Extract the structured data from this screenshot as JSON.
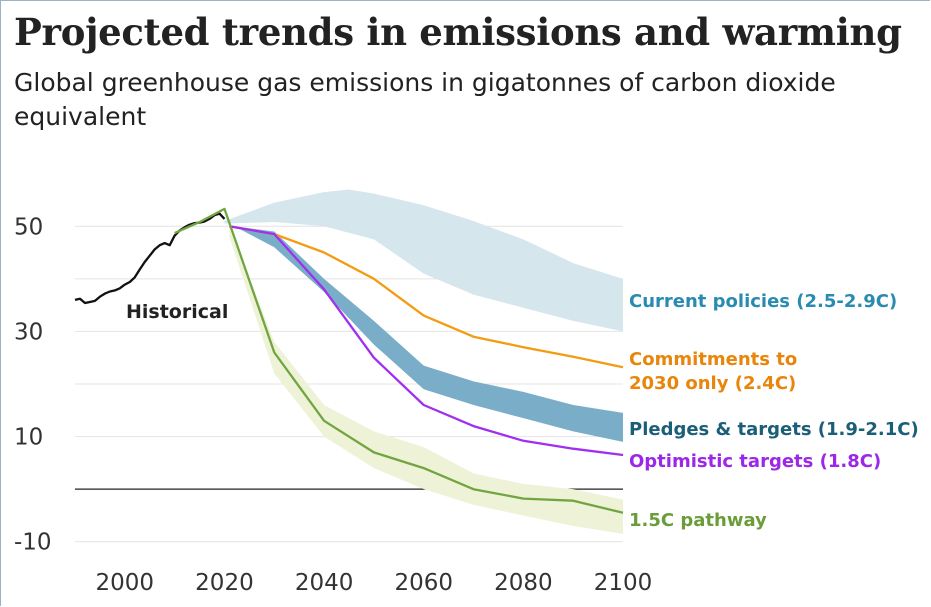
{
  "header": {
    "title": "Projected trends in emissions and warming",
    "subtitle": "Global greenhouse gas emissions in gigatonnes of carbon dioxide equivalent"
  },
  "chart_data": {
    "type": "line",
    "title": "Projected trends in emissions and warming",
    "subtitle": "Global greenhouse gas emissions in gigatonnes of carbon dioxide equivalent",
    "xlabel": "",
    "ylabel": "",
    "xlim": [
      1990,
      2100
    ],
    "ylim": [
      -12,
      60
    ],
    "x_ticks": [
      2000,
      2020,
      2040,
      2060,
      2080,
      2100
    ],
    "y_ticks": [
      50,
      30,
      10,
      -10
    ],
    "grid": "horizontal",
    "series": [
      {
        "name": "Historical",
        "color": "#111111",
        "points": [
          [
            1990,
            36
          ],
          [
            1991,
            36.2
          ],
          [
            1992,
            35.4
          ],
          [
            1993,
            35.6
          ],
          [
            1994,
            35.8
          ],
          [
            1995,
            36.6
          ],
          [
            1996,
            37.2
          ],
          [
            1997,
            37.6
          ],
          [
            1998,
            37.8
          ],
          [
            1999,
            38.2
          ],
          [
            2000,
            38.9
          ],
          [
            2001,
            39.4
          ],
          [
            2002,
            40.3
          ],
          [
            2003,
            41.8
          ],
          [
            2004,
            43.2
          ],
          [
            2005,
            44.4
          ],
          [
            2006,
            45.6
          ],
          [
            2007,
            46.4
          ],
          [
            2008,
            46.8
          ],
          [
            2009,
            46.4
          ],
          [
            2010,
            48.2
          ],
          [
            2011,
            49.2
          ],
          [
            2012,
            49.8
          ],
          [
            2013,
            50.3
          ],
          [
            2014,
            50.6
          ],
          [
            2015,
            50.7
          ],
          [
            2016,
            50.9
          ],
          [
            2017,
            51.4
          ],
          [
            2018,
            52.1
          ],
          [
            2019,
            52.4
          ],
          [
            2020,
            51.4
          ]
        ]
      },
      {
        "name": "Current policies (2.5-2.9C)",
        "color": "#2a8bb0",
        "band_color": "#d6e6ed",
        "upper": [
          [
            2020,
            51
          ],
          [
            2030,
            54.5
          ],
          [
            2040,
            56.5
          ],
          [
            2045,
            57
          ],
          [
            2050,
            56.2
          ],
          [
            2060,
            54
          ],
          [
            2070,
            51
          ],
          [
            2080,
            47.5
          ],
          [
            2090,
            43
          ],
          [
            2100,
            40
          ]
        ],
        "lower": [
          [
            2020,
            50.5
          ],
          [
            2030,
            50.8
          ],
          [
            2040,
            50
          ],
          [
            2050,
            47.5
          ],
          [
            2060,
            41
          ],
          [
            2070,
            37
          ],
          [
            2080,
            34.5
          ],
          [
            2090,
            32
          ],
          [
            2100,
            30
          ]
        ]
      },
      {
        "name": "Commitments to 2030 only (2.4C)",
        "color": "#f39c12",
        "points": [
          [
            2021,
            50
          ],
          [
            2030,
            48.5
          ],
          [
            2040,
            45
          ],
          [
            2050,
            40
          ],
          [
            2055,
            36.5
          ],
          [
            2060,
            33
          ],
          [
            2070,
            29
          ],
          [
            2080,
            27
          ],
          [
            2090,
            25.2
          ],
          [
            2100,
            23.2
          ]
        ]
      },
      {
        "name": "Pledges & targets (1.9-2.1C)",
        "color": "#1a5e78",
        "band_color": "#7aaec8",
        "upper": [
          [
            2022,
            50
          ],
          [
            2030,
            49
          ],
          [
            2040,
            40
          ],
          [
            2050,
            32
          ],
          [
            2060,
            23.5
          ],
          [
            2070,
            20.5
          ],
          [
            2080,
            18.5
          ],
          [
            2090,
            16
          ],
          [
            2100,
            14.5
          ]
        ],
        "lower": [
          [
            2022,
            50
          ],
          [
            2030,
            46
          ],
          [
            2040,
            37.5
          ],
          [
            2050,
            27.5
          ],
          [
            2060,
            19
          ],
          [
            2070,
            16
          ],
          [
            2080,
            13.5
          ],
          [
            2090,
            11
          ],
          [
            2100,
            9
          ]
        ]
      },
      {
        "name": "Optimistic targets (1.8C)",
        "color": "#a02ff0",
        "points": [
          [
            2021,
            50
          ],
          [
            2030,
            48.5
          ],
          [
            2040,
            38
          ],
          [
            2050,
            25
          ],
          [
            2060,
            16
          ],
          [
            2070,
            12
          ],
          [
            2080,
            9.2
          ],
          [
            2090,
            7.7
          ],
          [
            2100,
            6.5
          ]
        ]
      },
      {
        "name": "1.5C pathway",
        "color": "#72a542",
        "band_color": "#eef3d8",
        "points": [
          [
            2010,
            48.7
          ],
          [
            2015,
            50.8
          ],
          [
            2020,
            53.3
          ],
          [
            2030,
            26
          ],
          [
            2040,
            13
          ],
          [
            2050,
            7
          ],
          [
            2060,
            4
          ],
          [
            2070,
            0
          ],
          [
            2080,
            -1.8
          ],
          [
            2090,
            -2.2
          ],
          [
            2100,
            -4.5
          ]
        ],
        "upper": [
          [
            2021,
            50
          ],
          [
            2030,
            28
          ],
          [
            2040,
            16
          ],
          [
            2050,
            11
          ],
          [
            2060,
            8
          ],
          [
            2070,
            3
          ],
          [
            2080,
            1
          ],
          [
            2090,
            0
          ],
          [
            2100,
            -2
          ]
        ],
        "lower": [
          [
            2021,
            48
          ],
          [
            2030,
            22
          ],
          [
            2040,
            10
          ],
          [
            2050,
            4
          ],
          [
            2060,
            0
          ],
          [
            2070,
            -3
          ],
          [
            2080,
            -5
          ],
          [
            2090,
            -7
          ],
          [
            2100,
            -8.5
          ]
        ]
      }
    ],
    "labels": {
      "historical": "Historical",
      "current": "Current policies (2.5-2.9C)",
      "commit_1": "Commitments to",
      "commit_2": "2030 only (2.4C)",
      "pledges": "Pledges & targets (1.9-2.1C)",
      "optimistic": "Optimistic targets (1.8C)",
      "pathway": "1.5C pathway"
    }
  }
}
